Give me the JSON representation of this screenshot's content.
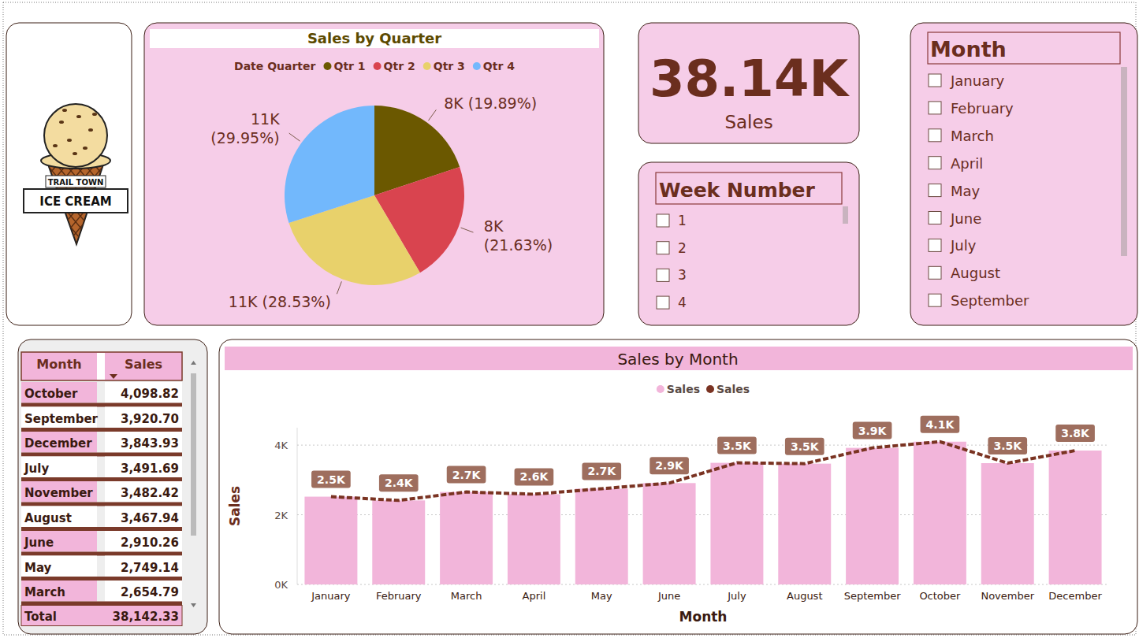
{
  "logo": {
    "line1": "TRAIL TOWN",
    "line2": "ICE CREAM"
  },
  "card": {
    "value": "38.14K",
    "label": "Sales"
  },
  "week_slicer": {
    "title": "Week Number",
    "items": [
      "1",
      "2",
      "3",
      "4"
    ]
  },
  "month_slicer": {
    "title": "Month",
    "items": [
      "January",
      "February",
      "March",
      "April",
      "May",
      "June",
      "July",
      "August",
      "September"
    ]
  },
  "table": {
    "columns": [
      "Month",
      "Sales"
    ],
    "rows": [
      [
        "October",
        "4,098.82"
      ],
      [
        "September",
        "3,920.70"
      ],
      [
        "December",
        "3,843.93"
      ],
      [
        "July",
        "3,491.69"
      ],
      [
        "November",
        "3,482.42"
      ],
      [
        "August",
        "3,467.94"
      ],
      [
        "June",
        "2,910.26"
      ],
      [
        "May",
        "2,749.14"
      ],
      [
        "March",
        "2,654.79"
      ]
    ],
    "total": [
      "Total",
      "38,142.33"
    ]
  },
  "chart_data": [
    {
      "type": "pie",
      "title": "Sales by Quarter",
      "legend_title": "Date Quarter",
      "categories": [
        "Qtr 1",
        "Qtr 2",
        "Qtr 3",
        "Qtr 4"
      ],
      "values": [
        19.89,
        21.63,
        28.53,
        29.95
      ],
      "value_labels": [
        "8K (19.89%)",
        "8K (21.63%)",
        "11K (28.53%)",
        "11K (29.95%)"
      ],
      "colors": [
        "#6b5800",
        "#d9444f",
        "#e8d16b",
        "#72b8fc"
      ],
      "legend": "top",
      "data_labels": true
    },
    {
      "type": "bar",
      "title": "Sales by Month",
      "x_label": "Month",
      "y_label": "Sales",
      "categories": [
        "January",
        "February",
        "March",
        "April",
        "May",
        "June",
        "July",
        "August",
        "September",
        "October",
        "November",
        "December"
      ],
      "series": [
        {
          "name": "Sales",
          "type": "bar",
          "color": "#f2b5da",
          "values": [
            2520,
            2412,
            2654.79,
            2591,
            2749.14,
            2910.26,
            3491.69,
            3467.94,
            3920.7,
            4098.82,
            3482.42,
            3843.93
          ]
        },
        {
          "name": "Sales",
          "type": "line",
          "color": "#7a3322",
          "line_style": "dashed",
          "values": [
            2520,
            2412,
            2654.79,
            2591,
            2749.14,
            2910.26,
            3491.69,
            3467.94,
            3920.7,
            4098.82,
            3482.42,
            3843.93
          ],
          "value_labels": [
            "2.5K",
            "2.4K",
            "2.7K",
            "2.6K",
            "2.7K",
            "2.9K",
            "3.5K",
            "3.5K",
            "3.9K",
            "4.1K",
            "3.5K",
            "3.8K"
          ]
        }
      ],
      "ylim": [
        0,
        4500
      ],
      "yticks": [
        {
          "value": 0,
          "label": "0K"
        },
        {
          "value": 2000,
          "label": "2K"
        },
        {
          "value": 4000,
          "label": "4K"
        }
      ],
      "grid": true,
      "legend": "top",
      "data_labels": true
    }
  ]
}
